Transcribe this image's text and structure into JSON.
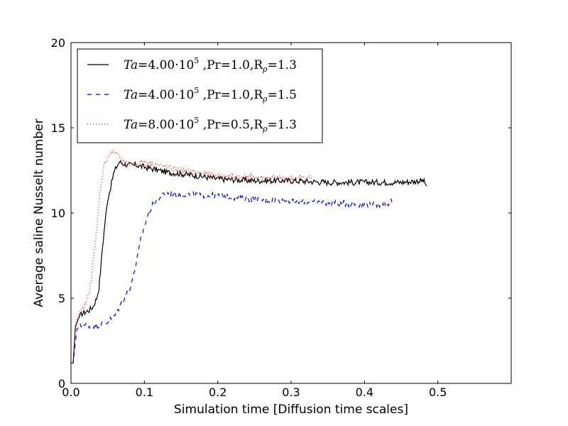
{
  "chart_data": {
    "type": "line",
    "title": "",
    "xlabel": "Simulation time [Diffusion time scales]",
    "ylabel": "Average saline Nusselt number",
    "xlim": [
      0,
      0.6
    ],
    "ylim": [
      0,
      20
    ],
    "xticks": [
      0.0,
      0.1,
      0.2,
      0.3,
      0.4,
      0.5
    ],
    "xtick_labels": [
      "0.0",
      "0.1",
      "0.2",
      "0.3",
      "0.4",
      "0.5"
    ],
    "yticks": [
      0,
      5,
      10,
      15,
      20
    ],
    "ytick_labels": [
      "0",
      "5",
      "10",
      "15",
      "20"
    ],
    "grid": false,
    "legend_position": "top-left",
    "series": [
      {
        "name": "Ta=4.00·10⁵ ,Pr=1.0,Rρ=1.3",
        "color": "#000000",
        "style": "solid",
        "x": [
          0.0,
          0.003,
          0.006,
          0.01,
          0.015,
          0.02,
          0.025,
          0.03,
          0.035,
          0.038,
          0.04,
          0.043,
          0.046,
          0.05,
          0.054,
          0.058,
          0.062,
          0.066,
          0.07,
          0.08,
          0.09,
          0.1,
          0.11,
          0.12,
          0.13,
          0.15,
          0.17,
          0.2,
          0.25,
          0.3,
          0.35,
          0.4,
          0.45,
          0.48,
          0.485
        ],
        "y": [
          1.2,
          1.2,
          3.3,
          3.8,
          4.1,
          4.2,
          4.3,
          4.5,
          5.0,
          5.6,
          6.5,
          8.0,
          9.3,
          10.8,
          11.5,
          12.3,
          12.7,
          13.0,
          12.9,
          12.8,
          12.8,
          12.7,
          12.6,
          12.5,
          12.4,
          12.3,
          12.2,
          12.0,
          11.9,
          11.9,
          11.8,
          11.8,
          11.8,
          11.9,
          11.6
        ]
      },
      {
        "name": "Ta=4.00·10⁵ ,Pr=1.0,Rρ=1.5",
        "color": "#0000ff",
        "style": "dashed",
        "x": [
          0.0,
          0.003,
          0.008,
          0.015,
          0.025,
          0.035,
          0.05,
          0.06,
          0.07,
          0.08,
          0.085,
          0.09,
          0.095,
          0.1,
          0.105,
          0.11,
          0.12,
          0.13,
          0.15,
          0.2,
          0.25,
          0.3,
          0.35,
          0.4,
          0.43,
          0.44
        ],
        "y": [
          1.2,
          1.2,
          3.2,
          3.4,
          3.4,
          3.4,
          3.6,
          4.0,
          4.8,
          5.6,
          6.3,
          7.3,
          8.4,
          9.2,
          9.9,
          10.4,
          10.9,
          11.2,
          11.1,
          11.0,
          10.8,
          10.7,
          10.6,
          10.5,
          10.5,
          10.8
        ]
      },
      {
        "name": "Ta=8.00·10⁵ ,Pr=0.5,Rρ=1.3",
        "color": "#ff0000",
        "style": "dotted",
        "x": [
          0.0,
          0.003,
          0.006,
          0.01,
          0.015,
          0.02,
          0.025,
          0.03,
          0.035,
          0.04,
          0.045,
          0.05,
          0.055,
          0.06,
          0.065,
          0.07,
          0.08,
          0.09,
          0.1,
          0.12,
          0.15,
          0.2,
          0.25,
          0.3,
          0.33
        ],
        "y": [
          1.2,
          1.2,
          3.5,
          4.0,
          4.3,
          4.7,
          5.4,
          7.0,
          9.0,
          11.5,
          12.8,
          13.3,
          13.5,
          13.6,
          13.4,
          13.0,
          12.8,
          12.9,
          13.0,
          12.8,
          12.5,
          12.2,
          12.1,
          12.0,
          12.1
        ]
      }
    ]
  },
  "legend": {
    "entries": [
      {
        "ta_prefix": "Ta",
        "ta_value": "=4.00·10",
        "ta_exp": "5",
        "rest": " ,Pr=1.0,R",
        "rho_sub": "ρ",
        "rho_val": "=1.3"
      },
      {
        "ta_prefix": "Ta",
        "ta_value": "=4.00·10",
        "ta_exp": "5",
        "rest": " ,Pr=1.0,R",
        "rho_sub": "ρ",
        "rho_val": "=1.5"
      },
      {
        "ta_prefix": "Ta",
        "ta_value": "=8.00·10",
        "ta_exp": "5",
        "rest": " ,Pr=0.5,R",
        "rho_sub": "ρ",
        "rho_val": "=1.3"
      }
    ]
  }
}
